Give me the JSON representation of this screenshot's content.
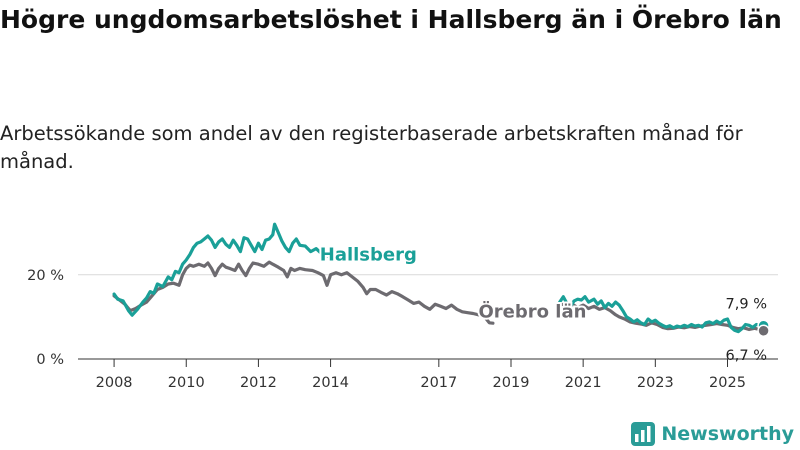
{
  "title": "Högre ungdomsarbetslöshet i Hallsberg än i Örebro län",
  "subtitle": "Arbetssökande som andel av den registerbaserade arbetskraften månad för månad.",
  "brand": {
    "name": "Newsworthy",
    "icon": "newsworthy-chart-logo-icon"
  },
  "colors": {
    "hallsberg": "#1aa098",
    "orebro": "#6d6b70",
    "grid": "#d9d9d9",
    "axis": "#333333"
  },
  "chart_data": {
    "type": "line",
    "title": "Högre ungdomsarbetslöshet i Hallsberg än i Örebro län",
    "xlabel": "",
    "ylabel": "",
    "x_ticks": [
      {
        "label": "2008",
        "value": 2008
      },
      {
        "label": "2010",
        "value": 2010
      },
      {
        "label": "2012",
        "value": 2012
      },
      {
        "label": "2014",
        "value": 2014
      },
      {
        "label": "2017",
        "value": 2017
      },
      {
        "label": "2019",
        "value": 2019
      },
      {
        "label": "2021",
        "value": 2021
      },
      {
        "label": "2023",
        "value": 2023
      },
      {
        "label": "2025",
        "value": 2025
      }
    ],
    "y_ticks": [
      {
        "label": "0 %",
        "value": 0
      },
      {
        "label": "20 %",
        "value": 20
      }
    ],
    "xlim": [
      2007,
      2026.4
    ],
    "ylim": [
      0,
      33
    ],
    "series": [
      {
        "name": "Hallsberg",
        "color_key": "hallsberg",
        "label_at": [
          2013.7,
          23.4
        ],
        "end_label": "7,9 %",
        "segments": [
          [
            [
              2008.0,
              15.4
            ],
            [
              2008.1,
              14.2
            ],
            [
              2008.25,
              13.8
            ],
            [
              2008.4,
              11.5
            ],
            [
              2008.5,
              10.4
            ],
            [
              2008.65,
              11.8
            ],
            [
              2008.8,
              13.5
            ],
            [
              2008.9,
              14.5
            ],
            [
              2009.0,
              16.0
            ],
            [
              2009.1,
              15.6
            ],
            [
              2009.2,
              17.8
            ],
            [
              2009.35,
              17.2
            ],
            [
              2009.5,
              19.5
            ],
            [
              2009.6,
              18.8
            ],
            [
              2009.7,
              20.8
            ],
            [
              2009.8,
              20.5
            ],
            [
              2009.9,
              22.5
            ],
            [
              2010.0,
              23.5
            ],
            [
              2010.1,
              24.8
            ],
            [
              2010.2,
              26.5
            ],
            [
              2010.3,
              27.5
            ],
            [
              2010.4,
              27.8
            ],
            [
              2010.5,
              28.5
            ],
            [
              2010.6,
              29.2
            ],
            [
              2010.7,
              28.2
            ],
            [
              2010.8,
              26.5
            ],
            [
              2010.9,
              27.8
            ],
            [
              2011.0,
              28.5
            ],
            [
              2011.1,
              27.2
            ],
            [
              2011.2,
              26.5
            ],
            [
              2011.3,
              28.2
            ],
            [
              2011.4,
              27.0
            ],
            [
              2011.5,
              25.5
            ],
            [
              2011.6,
              28.8
            ],
            [
              2011.7,
              28.5
            ],
            [
              2011.8,
              27.0
            ],
            [
              2011.9,
              25.5
            ],
            [
              2012.0,
              27.5
            ],
            [
              2012.1,
              26.0
            ],
            [
              2012.2,
              28.2
            ],
            [
              2012.3,
              28.5
            ],
            [
              2012.4,
              29.5
            ],
            [
              2012.45,
              32.0
            ],
            [
              2012.55,
              30.0
            ],
            [
              2012.65,
              28.0
            ],
            [
              2012.75,
              26.5
            ],
            [
              2012.85,
              25.5
            ],
            [
              2012.95,
              27.5
            ],
            [
              2013.05,
              28.5
            ],
            [
              2013.15,
              27.0
            ],
            [
              2013.3,
              26.8
            ],
            [
              2013.45,
              25.5
            ],
            [
              2013.6,
              26.2
            ],
            [
              2013.75,
              25.0
            ],
            [
              2013.9,
              24.5
            ],
            [
              2014.1,
              24.2
            ]
          ],
          [
            [
              2020.3,
              12.5
            ],
            [
              2020.35,
              13.5
            ],
            [
              2020.45,
              14.8
            ],
            [
              2020.55,
              13.2
            ],
            [
              2020.65,
              12.5
            ],
            [
              2020.75,
              13.8
            ],
            [
              2020.85,
              14.2
            ],
            [
              2020.95,
              14.0
            ],
            [
              2021.05,
              14.8
            ],
            [
              2021.15,
              13.5
            ],
            [
              2021.3,
              14.2
            ],
            [
              2021.4,
              13.0
            ],
            [
              2021.5,
              13.8
            ],
            [
              2021.6,
              12.2
            ],
            [
              2021.7,
              13.2
            ],
            [
              2021.8,
              12.5
            ],
            [
              2021.9,
              13.5
            ],
            [
              2022.0,
              12.8
            ],
            [
              2022.1,
              11.5
            ],
            [
              2022.2,
              10.0
            ],
            [
              2022.3,
              9.5
            ],
            [
              2022.4,
              8.8
            ],
            [
              2022.5,
              9.3
            ],
            [
              2022.6,
              8.6
            ],
            [
              2022.7,
              8.2
            ],
            [
              2022.8,
              9.5
            ],
            [
              2022.9,
              8.8
            ],
            [
              2023.0,
              9.2
            ],
            [
              2023.1,
              8.5
            ],
            [
              2023.2,
              8.0
            ],
            [
              2023.3,
              7.6
            ],
            [
              2023.4,
              7.9
            ],
            [
              2023.5,
              7.4
            ],
            [
              2023.6,
              7.8
            ],
            [
              2023.7,
              7.6
            ],
            [
              2023.8,
              8.0
            ],
            [
              2023.9,
              7.7
            ],
            [
              2024.0,
              8.2
            ],
            [
              2024.1,
              7.8
            ],
            [
              2024.2,
              8.0
            ],
            [
              2024.3,
              7.6
            ],
            [
              2024.4,
              8.6
            ],
            [
              2024.5,
              8.8
            ],
            [
              2024.6,
              8.4
            ],
            [
              2024.7,
              9.0
            ],
            [
              2024.8,
              8.5
            ],
            [
              2024.9,
              9.2
            ],
            [
              2025.0,
              9.5
            ],
            [
              2025.1,
              7.5
            ],
            [
              2025.2,
              6.8
            ],
            [
              2025.3,
              6.5
            ],
            [
              2025.4,
              7.2
            ],
            [
              2025.5,
              8.2
            ],
            [
              2025.6,
              8.0
            ],
            [
              2025.7,
              7.5
            ],
            [
              2025.8,
              8.2
            ],
            [
              2025.9,
              8.0
            ],
            [
              2026.0,
              7.9
            ]
          ]
        ]
      },
      {
        "name": "Örebro län",
        "color_key": "orebro",
        "label_at": [
          2018.1,
          9.8
        ],
        "end_label": "6,7 %",
        "segments": [
          [
            [
              2008.0,
              15.0
            ],
            [
              2008.15,
              14.0
            ],
            [
              2008.3,
              13.0
            ],
            [
              2008.45,
              11.5
            ],
            [
              2008.6,
              12.0
            ],
            [
              2008.75,
              12.8
            ],
            [
              2008.9,
              13.5
            ],
            [
              2009.0,
              14.5
            ],
            [
              2009.1,
              15.5
            ],
            [
              2009.2,
              16.5
            ],
            [
              2009.35,
              17.0
            ],
            [
              2009.5,
              17.8
            ],
            [
              2009.65,
              18.0
            ],
            [
              2009.8,
              17.5
            ],
            [
              2009.9,
              20.0
            ],
            [
              2010.0,
              21.5
            ],
            [
              2010.1,
              22.3
            ],
            [
              2010.2,
              22.0
            ],
            [
              2010.35,
              22.5
            ],
            [
              2010.5,
              22.0
            ],
            [
              2010.6,
              22.8
            ],
            [
              2010.7,
              21.5
            ],
            [
              2010.8,
              19.8
            ],
            [
              2010.9,
              21.5
            ],
            [
              2011.0,
              22.5
            ],
            [
              2011.1,
              21.8
            ],
            [
              2011.2,
              21.5
            ],
            [
              2011.35,
              21.0
            ],
            [
              2011.45,
              22.5
            ],
            [
              2011.55,
              21.0
            ],
            [
              2011.65,
              19.8
            ],
            [
              2011.75,
              21.5
            ],
            [
              2011.85,
              22.8
            ],
            [
              2012.0,
              22.5
            ],
            [
              2012.15,
              22.0
            ],
            [
              2012.3,
              23.0
            ],
            [
              2012.4,
              22.5
            ],
            [
              2012.55,
              21.8
            ],
            [
              2012.7,
              21.0
            ],
            [
              2012.8,
              19.5
            ],
            [
              2012.9,
              21.5
            ],
            [
              2013.0,
              21.0
            ],
            [
              2013.15,
              21.5
            ],
            [
              2013.3,
              21.2
            ],
            [
              2013.5,
              21.0
            ],
            [
              2013.65,
              20.5
            ],
            [
              2013.8,
              19.8
            ],
            [
              2013.9,
              17.5
            ],
            [
              2014.0,
              20.0
            ],
            [
              2014.15,
              20.5
            ],
            [
              2014.3,
              20.0
            ],
            [
              2014.45,
              20.5
            ],
            [
              2014.6,
              19.5
            ],
            [
              2014.75,
              18.5
            ],
            [
              2014.9,
              17.0
            ],
            [
              2015.0,
              15.5
            ],
            [
              2015.1,
              16.5
            ],
            [
              2015.25,
              16.5
            ],
            [
              2015.4,
              15.8
            ],
            [
              2015.55,
              15.2
            ],
            [
              2015.7,
              16.0
            ],
            [
              2015.85,
              15.5
            ],
            [
              2016.0,
              14.8
            ],
            [
              2016.15,
              14.0
            ],
            [
              2016.3,
              13.2
            ],
            [
              2016.45,
              13.5
            ],
            [
              2016.6,
              12.5
            ],
            [
              2016.75,
              11.8
            ],
            [
              2016.9,
              13.0
            ],
            [
              2017.05,
              12.5
            ],
            [
              2017.2,
              12.0
            ],
            [
              2017.35,
              12.8
            ],
            [
              2017.5,
              11.8
            ],
            [
              2017.65,
              11.2
            ],
            [
              2017.8,
              11.0
            ],
            [
              2017.95,
              10.8
            ],
            [
              2018.1,
              10.5
            ],
            [
              2018.25,
              10.2
            ],
            [
              2018.4,
              8.6
            ],
            [
              2018.5,
              8.5
            ]
          ],
          [
            [
              2020.4,
              13.0
            ],
            [
              2020.55,
              12.5
            ],
            [
              2020.7,
              13.0
            ],
            [
              2020.85,
              12.2
            ],
            [
              2021.0,
              12.8
            ],
            [
              2021.15,
              12.0
            ],
            [
              2021.3,
              12.5
            ],
            [
              2021.45,
              11.8
            ],
            [
              2021.6,
              12.2
            ],
            [
              2021.75,
              11.5
            ],
            [
              2021.9,
              10.5
            ],
            [
              2022.0,
              10.0
            ],
            [
              2022.15,
              9.5
            ],
            [
              2022.3,
              8.8
            ],
            [
              2022.45,
              8.5
            ],
            [
              2022.6,
              8.3
            ],
            [
              2022.75,
              8.0
            ],
            [
              2022.9,
              8.6
            ],
            [
              2023.05,
              8.2
            ],
            [
              2023.2,
              7.5
            ],
            [
              2023.35,
              7.2
            ],
            [
              2023.5,
              7.3
            ],
            [
              2023.65,
              7.6
            ],
            [
              2023.8,
              7.4
            ],
            [
              2023.95,
              7.7
            ],
            [
              2024.1,
              7.5
            ],
            [
              2024.25,
              7.8
            ],
            [
              2024.4,
              8.0
            ],
            [
              2024.55,
              8.2
            ],
            [
              2024.7,
              8.4
            ],
            [
              2024.85,
              8.2
            ],
            [
              2025.0,
              8.0
            ],
            [
              2025.15,
              7.5
            ],
            [
              2025.3,
              7.2
            ],
            [
              2025.45,
              7.4
            ],
            [
              2025.6,
              7.0
            ],
            [
              2025.75,
              7.3
            ],
            [
              2025.9,
              7.0
            ],
            [
              2026.0,
              6.7
            ]
          ]
        ]
      }
    ]
  }
}
